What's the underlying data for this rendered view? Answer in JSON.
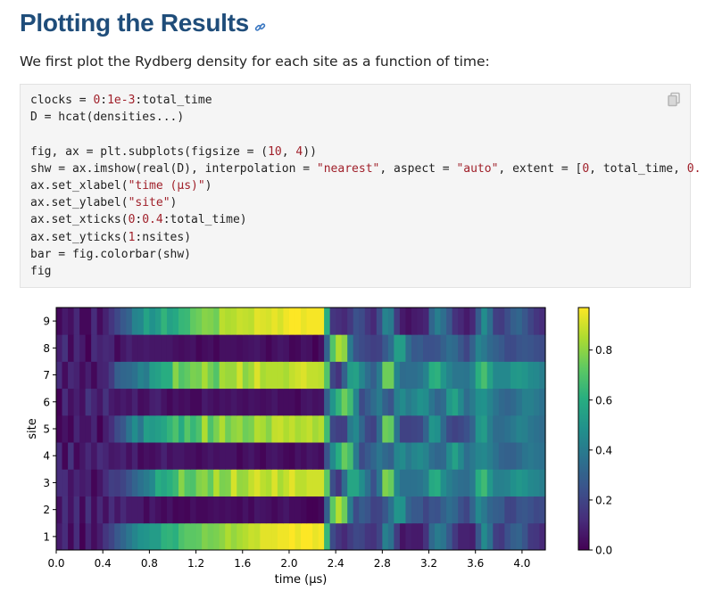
{
  "header": {
    "title": "Plotting the Results",
    "anchor_icon": "link-icon"
  },
  "intro": "We first plot the Rydberg density for each site as a function of time:",
  "code": {
    "copy_icon": "copy-icon",
    "lines": [
      [
        {
          "t": "clocks = "
        },
        {
          "t": "0",
          "c": "num"
        },
        {
          "t": ":"
        },
        {
          "t": "1e-3",
          "c": "num"
        },
        {
          "t": ":total_time"
        }
      ],
      [
        {
          "t": "D = hcat(densities...)"
        }
      ],
      [],
      [
        {
          "t": "fig, ax = plt.subplots(figsize = ("
        },
        {
          "t": "10",
          "c": "num"
        },
        {
          "t": ", "
        },
        {
          "t": "4",
          "c": "num"
        },
        {
          "t": "))"
        }
      ],
      [
        {
          "t": "shw = ax.imshow(real(D), interpolation = "
        },
        {
          "t": "\"nearest\"",
          "c": "str"
        },
        {
          "t": ", aspect = "
        },
        {
          "t": "\"auto\"",
          "c": "str"
        },
        {
          "t": ", extent = ["
        },
        {
          "t": "0",
          "c": "num"
        },
        {
          "t": ", total_time, "
        },
        {
          "t": "0.",
          "c": "num"
        }
      ],
      [
        {
          "t": "ax.set_xlabel("
        },
        {
          "t": "\"time (μs)\"",
          "c": "str"
        },
        {
          "t": ")"
        }
      ],
      [
        {
          "t": "ax.set_ylabel("
        },
        {
          "t": "\"site\"",
          "c": "str"
        },
        {
          "t": ")"
        }
      ],
      [
        {
          "t": "ax.set_xticks("
        },
        {
          "t": "0",
          "c": "num"
        },
        {
          "t": ":"
        },
        {
          "t": "0.4",
          "c": "num"
        },
        {
          "t": ":total_time)"
        }
      ],
      [
        {
          "t": "ax.set_yticks("
        },
        {
          "t": "1",
          "c": "num"
        },
        {
          "t": ":nsites)"
        }
      ],
      [
        {
          "t": "bar = fig.colorbar(shw)"
        }
      ],
      [
        {
          "t": "fig"
        }
      ]
    ]
  },
  "colors": {
    "title": "#1f4d7a",
    "code_number": "#a0202a",
    "code_string": "#a0202a"
  },
  "chart_data": {
    "type": "heatmap",
    "title": "",
    "xlabel": "time (μs)",
    "ylabel": "site",
    "xlim": [
      0.0,
      4.2
    ],
    "x_ticks": [
      "0.0",
      "0.4",
      "0.8",
      "1.2",
      "1.6",
      "2.0",
      "2.4",
      "2.8",
      "3.2",
      "3.6",
      "4.0"
    ],
    "y_ticks": [
      "1",
      "2",
      "3",
      "4",
      "5",
      "6",
      "7",
      "8",
      "9"
    ],
    "colormap": "viridis",
    "colorbar": {
      "range": [
        0.0,
        0.97
      ],
      "ticks": [
        "0.0",
        "0.2",
        "0.4",
        "0.6",
        "0.8"
      ]
    },
    "time_step": 0.05,
    "rows": [
      {
        "site": 1,
        "values": [
          0.07,
          0.12,
          0.02,
          0.12,
          0.0,
          0.1,
          0.03,
          0.08,
          0.15,
          0.2,
          0.27,
          0.32,
          0.38,
          0.44,
          0.49,
          0.5,
          0.53,
          0.53,
          0.62,
          0.63,
          0.61,
          0.69,
          0.72,
          0.72,
          0.73,
          0.78,
          0.76,
          0.77,
          0.8,
          0.85,
          0.81,
          0.84,
          0.86,
          0.89,
          0.88,
          0.93,
          0.93,
          0.93,
          0.95,
          0.95,
          0.98,
          0.94,
          0.97,
          0.97,
          0.94,
          0.96,
          0.64,
          0.22,
          0.15,
          0.11,
          0.17,
          0.21,
          0.2,
          0.15,
          0.14,
          0.2,
          0.42,
          0.36,
          0.17,
          0.05,
          0.08,
          0.07,
          0.07,
          0.14,
          0.33,
          0.4,
          0.37,
          0.27,
          0.16,
          0.09,
          0.09,
          0.08,
          0.26,
          0.46,
          0.36,
          0.18,
          0.16,
          0.24,
          0.29,
          0.31,
          0.25,
          0.16,
          0.15,
          0.11
        ]
      },
      {
        "site": 2,
        "values": [
          0.04,
          0.13,
          0.05,
          0.13,
          0.02,
          0.14,
          0.03,
          0.11,
          0.04,
          0.12,
          0.06,
          0.11,
          0.07,
          0.07,
          0.07,
          0.02,
          0.07,
          0.04,
          0.02,
          0.05,
          0.01,
          0.02,
          0.01,
          0.04,
          0.02,
          0.02,
          0.03,
          0.04,
          0.03,
          0.04,
          0.03,
          0.02,
          0.05,
          0.02,
          0.06,
          0.05,
          0.04,
          0.02,
          0.04,
          0.06,
          0.03,
          0.03,
          0.02,
          0.0,
          0.0,
          0.02,
          0.3,
          0.72,
          0.86,
          0.75,
          0.4,
          0.22,
          0.28,
          0.25,
          0.19,
          0.2,
          0.26,
          0.36,
          0.5,
          0.49,
          0.31,
          0.27,
          0.27,
          0.2,
          0.25,
          0.24,
          0.3,
          0.35,
          0.32,
          0.24,
          0.2,
          0.31,
          0.45,
          0.39,
          0.32,
          0.29,
          0.28,
          0.2,
          0.2,
          0.25,
          0.26,
          0.24,
          0.21,
          0.22
        ]
      },
      {
        "site": 3,
        "values": [
          0.12,
          0.12,
          0.05,
          0.1,
          0.07,
          0.09,
          0.01,
          0.06,
          0.12,
          0.18,
          0.17,
          0.2,
          0.25,
          0.31,
          0.36,
          0.4,
          0.45,
          0.6,
          0.57,
          0.61,
          0.65,
          0.79,
          0.7,
          0.69,
          0.78,
          0.8,
          0.73,
          0.86,
          0.77,
          0.78,
          0.91,
          0.81,
          0.82,
          0.88,
          0.92,
          0.87,
          0.85,
          0.92,
          0.84,
          0.88,
          0.93,
          0.87,
          0.87,
          0.9,
          0.9,
          0.9,
          0.72,
          0.23,
          0.15,
          0.34,
          0.57,
          0.57,
          0.47,
          0.36,
          0.24,
          0.38,
          0.78,
          0.74,
          0.45,
          0.36,
          0.36,
          0.36,
          0.37,
          0.41,
          0.58,
          0.6,
          0.47,
          0.41,
          0.37,
          0.35,
          0.34,
          0.39,
          0.6,
          0.66,
          0.51,
          0.42,
          0.42,
          0.43,
          0.48,
          0.51,
          0.49,
          0.45,
          0.44,
          0.41
        ]
      },
      {
        "site": 4,
        "values": [
          0.12,
          0.01,
          0.14,
          0.02,
          0.06,
          0.11,
          0.06,
          0.12,
          0.1,
          0.06,
          0.07,
          0.09,
          0.04,
          0.09,
          0.02,
          0.04,
          0.03,
          0.05,
          0.09,
          0.04,
          0.06,
          0.06,
          0.04,
          0.04,
          0.02,
          0.04,
          0.06,
          0.04,
          0.05,
          0.05,
          0.05,
          0.01,
          0.04,
          0.06,
          0.03,
          0.01,
          0.05,
          0.06,
          0.04,
          0.02,
          0.01,
          0.05,
          0.03,
          0.06,
          0.05,
          0.03,
          0.25,
          0.46,
          0.6,
          0.74,
          0.67,
          0.4,
          0.22,
          0.27,
          0.32,
          0.38,
          0.33,
          0.3,
          0.44,
          0.46,
          0.39,
          0.44,
          0.46,
          0.43,
          0.35,
          0.32,
          0.33,
          0.46,
          0.55,
          0.45,
          0.35,
          0.39,
          0.44,
          0.45,
          0.41,
          0.36,
          0.31,
          0.3,
          0.3,
          0.33,
          0.37,
          0.39,
          0.37,
          0.36
        ]
      },
      {
        "site": 5,
        "values": [
          0.01,
          0.05,
          0.01,
          0.1,
          0.05,
          0.05,
          0.1,
          0.0,
          0.08,
          0.13,
          0.22,
          0.26,
          0.37,
          0.47,
          0.38,
          0.54,
          0.52,
          0.54,
          0.57,
          0.63,
          0.69,
          0.59,
          0.71,
          0.64,
          0.69,
          0.85,
          0.69,
          0.77,
          0.85,
          0.75,
          0.8,
          0.82,
          0.75,
          0.77,
          0.86,
          0.84,
          0.79,
          0.88,
          0.89,
          0.85,
          0.88,
          0.84,
          0.86,
          0.88,
          0.83,
          0.86,
          0.66,
          0.21,
          0.18,
          0.18,
          0.4,
          0.45,
          0.32,
          0.21,
          0.19,
          0.34,
          0.75,
          0.73,
          0.37,
          0.19,
          0.19,
          0.2,
          0.21,
          0.31,
          0.5,
          0.48,
          0.33,
          0.22,
          0.19,
          0.21,
          0.24,
          0.31,
          0.5,
          0.53,
          0.41,
          0.34,
          0.34,
          0.36,
          0.39,
          0.43,
          0.42,
          0.38,
          0.36,
          0.34
        ]
      },
      {
        "site": 6,
        "values": [
          0.0,
          0.12,
          0.04,
          0.08,
          0.04,
          0.15,
          0.1,
          0.06,
          0.14,
          0.07,
          0.05,
          0.07,
          0.05,
          0.09,
          0.03,
          0.04,
          0.08,
          0.09,
          0.05,
          0.02,
          0.05,
          0.03,
          0.04,
          0.02,
          0.02,
          0.07,
          0.05,
          0.03,
          0.05,
          0.04,
          0.06,
          0.04,
          0.03,
          0.05,
          0.04,
          0.03,
          0.04,
          0.06,
          0.03,
          0.03,
          0.03,
          0.01,
          0.05,
          0.06,
          0.04,
          0.05,
          0.3,
          0.5,
          0.63,
          0.75,
          0.66,
          0.44,
          0.22,
          0.28,
          0.34,
          0.4,
          0.3,
          0.25,
          0.42,
          0.46,
          0.4,
          0.44,
          0.49,
          0.47,
          0.37,
          0.31,
          0.34,
          0.51,
          0.56,
          0.45,
          0.34,
          0.4,
          0.48,
          0.49,
          0.43,
          0.37,
          0.33,
          0.31,
          0.33,
          0.37,
          0.42,
          0.42,
          0.39,
          0.36
        ]
      },
      {
        "site": 7,
        "values": [
          0.12,
          0.03,
          0.11,
          0.09,
          0.03,
          0.08,
          0.02,
          0.09,
          0.1,
          0.17,
          0.29,
          0.32,
          0.33,
          0.36,
          0.43,
          0.4,
          0.53,
          0.55,
          0.6,
          0.6,
          0.79,
          0.7,
          0.73,
          0.77,
          0.76,
          0.84,
          0.76,
          0.7,
          0.84,
          0.82,
          0.82,
          0.9,
          0.79,
          0.83,
          0.92,
          0.84,
          0.86,
          0.86,
          0.86,
          0.84,
          0.88,
          0.9,
          0.92,
          0.88,
          0.88,
          0.87,
          0.7,
          0.2,
          0.14,
          0.3,
          0.53,
          0.55,
          0.44,
          0.35,
          0.29,
          0.4,
          0.75,
          0.75,
          0.44,
          0.34,
          0.35,
          0.35,
          0.37,
          0.43,
          0.6,
          0.62,
          0.5,
          0.43,
          0.38,
          0.38,
          0.37,
          0.43,
          0.61,
          0.68,
          0.55,
          0.45,
          0.45,
          0.45,
          0.51,
          0.52,
          0.5,
          0.46,
          0.45,
          0.41
        ]
      },
      {
        "site": 8,
        "values": [
          0.08,
          0.14,
          0.02,
          0.11,
          0.07,
          0.0,
          0.12,
          0.09,
          0.11,
          0.1,
          0.02,
          0.06,
          0.09,
          0.06,
          0.06,
          0.07,
          0.06,
          0.06,
          0.06,
          0.06,
          0.04,
          0.03,
          0.04,
          0.05,
          0.01,
          0.03,
          0.04,
          0.01,
          0.04,
          0.04,
          0.04,
          0.03,
          0.04,
          0.05,
          0.06,
          0.04,
          0.01,
          0.04,
          0.06,
          0.05,
          0.01,
          0.02,
          0.05,
          0.04,
          0.0,
          0.04,
          0.31,
          0.7,
          0.85,
          0.8,
          0.39,
          0.25,
          0.22,
          0.2,
          0.18,
          0.19,
          0.27,
          0.35,
          0.54,
          0.53,
          0.34,
          0.27,
          0.28,
          0.24,
          0.24,
          0.25,
          0.3,
          0.35,
          0.33,
          0.26,
          0.2,
          0.3,
          0.43,
          0.39,
          0.33,
          0.3,
          0.27,
          0.22,
          0.22,
          0.25,
          0.26,
          0.25,
          0.23,
          0.22
        ]
      },
      {
        "site": 9,
        "values": [
          0.02,
          0.07,
          0.04,
          0.11,
          0.02,
          0.02,
          0.12,
          0.03,
          0.09,
          0.15,
          0.21,
          0.27,
          0.31,
          0.43,
          0.45,
          0.56,
          0.49,
          0.53,
          0.63,
          0.55,
          0.58,
          0.64,
          0.65,
          0.73,
          0.75,
          0.79,
          0.78,
          0.75,
          0.87,
          0.85,
          0.86,
          0.89,
          0.88,
          0.87,
          0.93,
          0.92,
          0.91,
          0.94,
          0.91,
          0.95,
          0.98,
          0.97,
          0.94,
          0.96,
          0.96,
          0.96,
          0.6,
          0.15,
          0.13,
          0.11,
          0.16,
          0.24,
          0.22,
          0.15,
          0.11,
          0.23,
          0.43,
          0.4,
          0.17,
          0.07,
          0.04,
          0.07,
          0.08,
          0.1,
          0.32,
          0.41,
          0.35,
          0.26,
          0.14,
          0.11,
          0.07,
          0.11,
          0.28,
          0.47,
          0.35,
          0.18,
          0.17,
          0.23,
          0.29,
          0.32,
          0.26,
          0.2,
          0.15,
          0.12
        ]
      }
    ]
  }
}
